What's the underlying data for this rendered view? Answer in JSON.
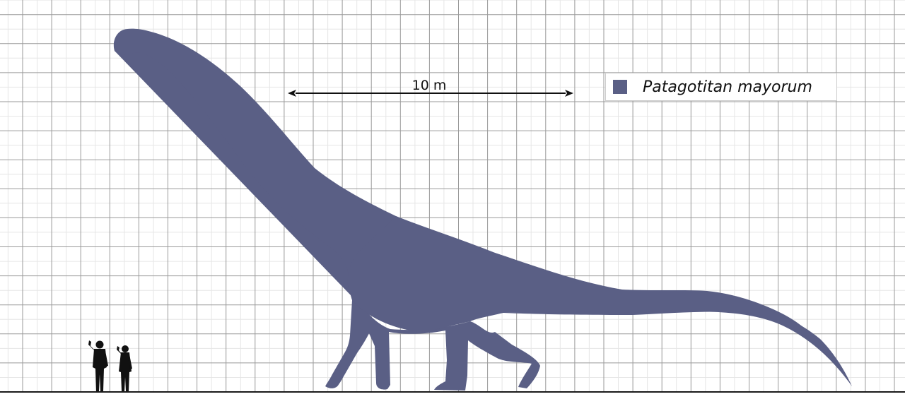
{
  "scale_bar": {
    "label": "10 m",
    "length_m": 10
  },
  "legend": {
    "species": "Patagotitan mayorum",
    "color": "#5a5f85"
  },
  "human_color": "#111111"
}
